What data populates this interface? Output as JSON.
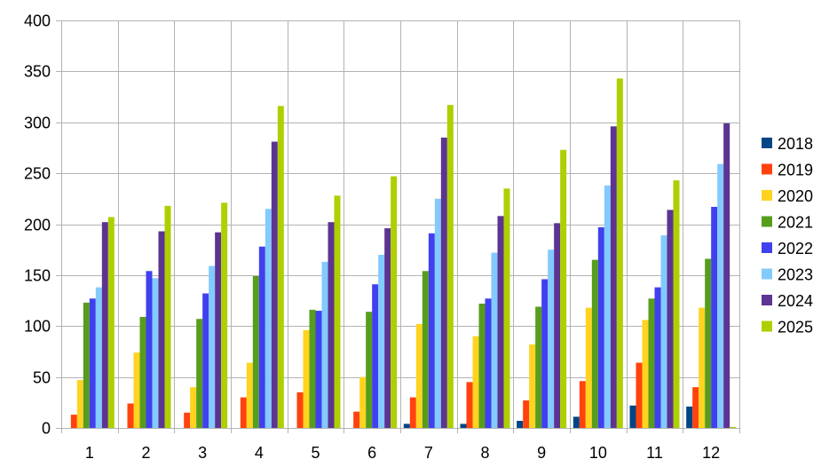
{
  "chart_data": {
    "type": "bar",
    "title": "",
    "xlabel": "",
    "ylabel": "",
    "categories": [
      "1",
      "2",
      "3",
      "4",
      "5",
      "6",
      "7",
      "8",
      "9",
      "10",
      "11",
      "12"
    ],
    "ylim": [
      0,
      400
    ],
    "yticks": [
      0,
      50,
      100,
      150,
      200,
      250,
      300,
      350,
      400
    ],
    "grid": true,
    "legend_position": "right",
    "series": [
      {
        "name": "2018",
        "color": "#004586",
        "values": [
          0,
          0,
          0,
          0,
          0,
          0,
          4,
          4,
          7,
          11,
          22,
          21
        ]
      },
      {
        "name": "2019",
        "color": "#ff420e",
        "values": [
          13,
          24,
          15,
          30,
          35,
          16,
          30,
          45,
          27,
          46,
          64,
          40
        ]
      },
      {
        "name": "2020",
        "color": "#ffd320",
        "values": [
          47,
          74,
          40,
          64,
          96,
          50,
          102,
          90,
          82,
          118,
          106,
          118
        ]
      },
      {
        "name": "2021",
        "color": "#579d1c",
        "values": [
          123,
          109,
          107,
          149,
          116,
          114,
          154,
          122,
          119,
          165,
          127,
          166
        ]
      },
      {
        "name": "2022",
        "color": "#4040ee",
        "values": [
          127,
          154,
          132,
          178,
          115,
          141,
          191,
          127,
          146,
          197,
          138,
          217
        ]
      },
      {
        "name": "2023",
        "color": "#83caff",
        "values": [
          138,
          147,
          159,
          215,
          163,
          170,
          225,
          172,
          175,
          238,
          189,
          259
        ]
      },
      {
        "name": "2024",
        "color": "#5c3492",
        "values": [
          202,
          193,
          192,
          281,
          202,
          196,
          285,
          208,
          201,
          296,
          214,
          299
        ]
      },
      {
        "name": "2025",
        "color": "#aecf00",
        "values": [
          207,
          218,
          221,
          316,
          228,
          247,
          317,
          235,
          273,
          343,
          243,
          1
        ]
      }
    ]
  }
}
